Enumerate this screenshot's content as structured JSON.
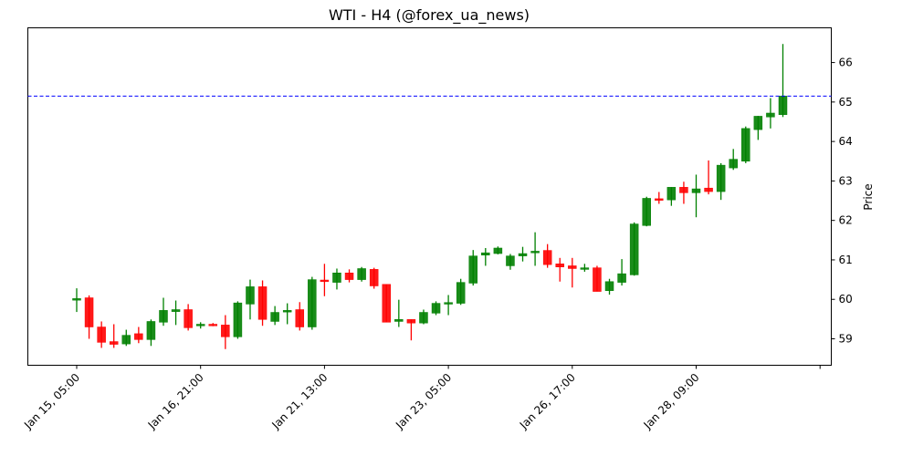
{
  "chart_data": {
    "type": "candlestick",
    "title": "WTI - H4 (@forex_ua_news)",
    "xlabel": "",
    "ylabel": "Price",
    "ylim": [
      58.33,
      66.88
    ],
    "yticks": [
      59,
      60,
      61,
      62,
      63,
      64,
      65,
      66
    ],
    "xticks": [
      {
        "index": 0,
        "label": "Jan 15, 05:00"
      },
      {
        "index": 10,
        "label": "Jan 16, 21:00"
      },
      {
        "index": 20,
        "label": "Jan 21, 13:00"
      },
      {
        "index": 30,
        "label": "Jan 23, 05:00"
      },
      {
        "index": 40,
        "label": "Jan 26, 17:00"
      },
      {
        "index": 50,
        "label": "Jan 28, 09:00"
      },
      {
        "index": 60,
        "label": ""
      }
    ],
    "grid": false,
    "reference_line": {
      "value": 65.15,
      "color": "#0000ff",
      "style": "dashed"
    },
    "colors": {
      "up": "#008000",
      "down": "#ff0000"
    },
    "ohlc": [
      [
        59.99,
        60.28,
        59.68,
        60.02
      ],
      [
        60.04,
        60.1,
        59.0,
        59.3
      ],
      [
        59.3,
        59.44,
        58.77,
        58.91
      ],
      [
        58.93,
        59.37,
        58.77,
        58.86
      ],
      [
        58.87,
        59.23,
        58.82,
        59.09
      ],
      [
        59.13,
        59.3,
        58.89,
        58.98
      ],
      [
        58.98,
        59.49,
        58.82,
        59.44
      ],
      [
        59.42,
        60.04,
        59.33,
        59.72
      ],
      [
        59.69,
        59.97,
        59.35,
        59.74
      ],
      [
        59.74,
        59.88,
        59.21,
        59.28
      ],
      [
        59.33,
        59.42,
        59.26,
        59.37
      ],
      [
        59.37,
        59.4,
        59.32,
        59.33
      ],
      [
        59.35,
        59.6,
        58.74,
        59.05
      ],
      [
        59.05,
        59.95,
        59.0,
        59.91
      ],
      [
        59.88,
        60.5,
        59.49,
        60.32
      ],
      [
        60.32,
        60.48,
        59.33,
        59.49
      ],
      [
        59.44,
        59.83,
        59.35,
        59.67
      ],
      [
        59.69,
        59.9,
        59.37,
        59.72
      ],
      [
        59.74,
        59.93,
        59.21,
        59.3
      ],
      [
        59.3,
        60.57,
        59.23,
        60.5
      ],
      [
        60.49,
        60.9,
        60.08,
        60.45
      ],
      [
        60.43,
        60.78,
        60.25,
        60.67
      ],
      [
        60.67,
        60.76,
        60.43,
        60.5
      ],
      [
        60.5,
        60.82,
        60.45,
        60.78
      ],
      [
        60.76,
        60.8,
        60.27,
        60.34
      ],
      [
        60.38,
        60.38,
        59.42,
        59.42
      ],
      [
        59.44,
        59.99,
        59.3,
        59.49
      ],
      [
        59.49,
        59.49,
        58.96,
        59.4
      ],
      [
        59.4,
        59.74,
        59.37,
        59.67
      ],
      [
        59.65,
        59.95,
        59.6,
        59.9
      ],
      [
        59.88,
        60.11,
        59.6,
        59.92
      ],
      [
        59.9,
        60.52,
        59.86,
        60.43
      ],
      [
        60.41,
        61.25,
        60.35,
        61.1
      ],
      [
        61.12,
        61.3,
        60.85,
        61.18
      ],
      [
        61.16,
        61.34,
        61.14,
        61.3
      ],
      [
        60.85,
        61.15,
        60.75,
        61.1
      ],
      [
        61.1,
        61.33,
        60.96,
        61.16
      ],
      [
        61.2,
        61.7,
        60.85,
        61.22
      ],
      [
        61.24,
        61.4,
        60.8,
        60.88
      ],
      [
        60.9,
        61.05,
        60.45,
        60.82
      ],
      [
        60.85,
        61.05,
        60.3,
        60.78
      ],
      [
        60.78,
        60.9,
        60.7,
        60.8
      ],
      [
        60.8,
        60.85,
        60.2,
        60.2
      ],
      [
        60.22,
        60.52,
        60.12,
        60.45
      ],
      [
        60.43,
        61.02,
        60.35,
        60.65
      ],
      [
        60.62,
        61.95,
        60.6,
        61.91
      ],
      [
        61.87,
        62.6,
        61.85,
        62.56
      ],
      [
        62.55,
        62.72,
        62.42,
        62.53
      ],
      [
        62.52,
        62.84,
        62.37,
        62.84
      ],
      [
        62.84,
        62.98,
        62.42,
        62.7
      ],
      [
        62.7,
        63.16,
        62.08,
        62.8
      ],
      [
        62.82,
        63.52,
        62.66,
        62.73
      ],
      [
        62.73,
        63.45,
        62.52,
        63.4
      ],
      [
        63.33,
        63.81,
        63.28,
        63.55
      ],
      [
        63.5,
        64.38,
        63.45,
        64.33
      ],
      [
        64.3,
        64.65,
        64.04,
        64.64
      ],
      [
        64.62,
        65.1,
        64.33,
        64.72
      ],
      [
        64.68,
        66.47,
        64.62,
        65.15
      ]
    ]
  }
}
